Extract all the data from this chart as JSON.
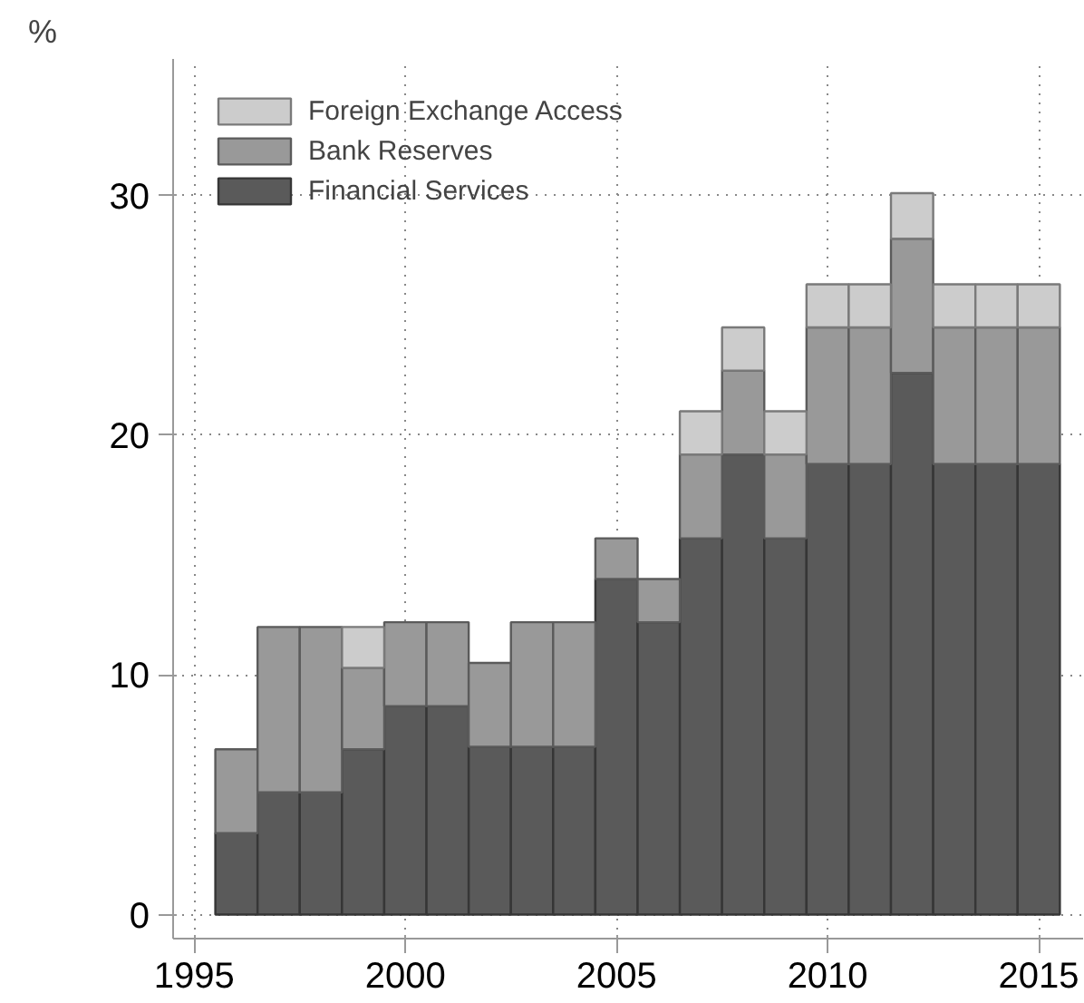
{
  "chart_data": {
    "type": "bar",
    "stacked": true,
    "ylabel": "%",
    "x": [
      1996,
      1997,
      1998,
      1999,
      2000,
      2001,
      2002,
      2003,
      2004,
      2005,
      2006,
      2007,
      2008,
      2009,
      2010,
      2011,
      2012,
      2013,
      2014,
      2015
    ],
    "series": [
      {
        "name": "Financial Services",
        "color": "#5a5a5a",
        "values": [
          3.4,
          5.1,
          5.1,
          6.9,
          8.7,
          8.7,
          7.0,
          7.0,
          7.0,
          14.0,
          12.2,
          15.7,
          19.2,
          15.7,
          18.8,
          18.8,
          22.6,
          18.8,
          18.8,
          18.8
        ]
      },
      {
        "name": "Bank Reserves",
        "color": "#999999",
        "values": [
          3.5,
          6.9,
          6.9,
          3.4,
          3.5,
          3.5,
          3.5,
          5.2,
          5.2,
          1.7,
          1.8,
          3.5,
          3.5,
          3.5,
          5.7,
          5.7,
          5.6,
          5.7,
          5.7,
          5.7
        ]
      },
      {
        "name": "Foreign Exchange Access",
        "color": "#cccccc",
        "values": [
          null,
          null,
          null,
          1.7,
          null,
          null,
          null,
          null,
          null,
          null,
          null,
          1.8,
          1.8,
          1.8,
          1.8,
          1.8,
          1.9,
          1.8,
          1.8,
          1.8
        ]
      }
    ],
    "xlim": [
      1994.5,
      2016.05
    ],
    "ylim": [
      -1,
      35.7
    ],
    "xticks": [
      1995,
      2000,
      2005,
      2010,
      2015
    ],
    "yticks": [
      0,
      10,
      20,
      30
    ],
    "grid": true,
    "legend": "top left"
  }
}
